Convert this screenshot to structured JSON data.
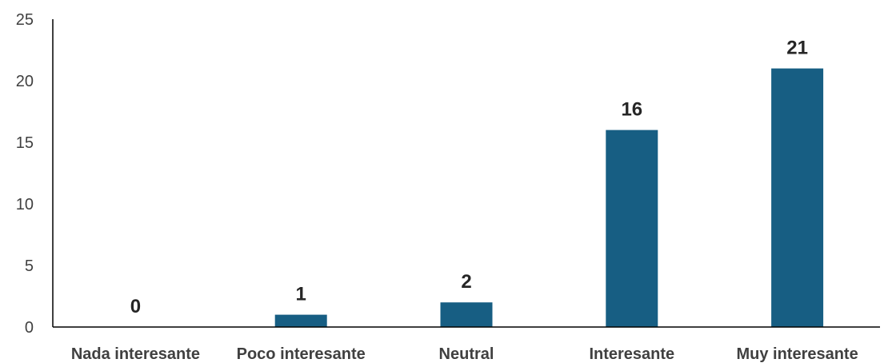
{
  "chart_data": {
    "type": "bar",
    "categories": [
      "Nada interesante",
      "Poco interesante",
      "Neutral",
      "Interesante",
      "Muy interesante"
    ],
    "values": [
      0,
      1,
      2,
      16,
      21
    ],
    "ylim": [
      0,
      25
    ],
    "yticks": [
      0,
      5,
      10,
      15,
      20,
      25
    ],
    "grid": false,
    "bar_color": "#175e83",
    "title": "",
    "xlabel": "",
    "ylabel": ""
  }
}
